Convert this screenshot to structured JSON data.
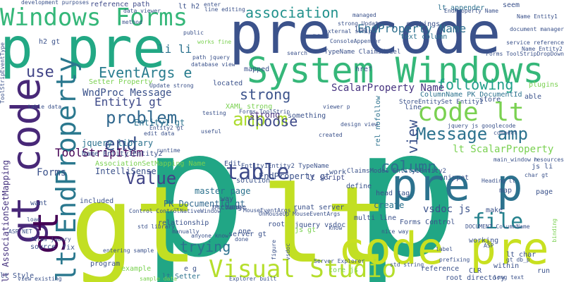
{
  "palette": {
    "background": "#ffffff",
    "colors": [
      "#440154",
      "#472d7b",
      "#3b528b",
      "#2c728e",
      "#21918c",
      "#28ae80",
      "#5ec962",
      "#addc30",
      "#d5e21a",
      "#fde725"
    ]
  },
  "words": [
    {
      "text": "p p",
      "size": 250,
      "color": "#21a685"
    },
    {
      "text": "gt lt",
      "size": 150,
      "color": "#c2df23"
    },
    {
      "text": "pre code",
      "size": 80,
      "color": "#3b528b"
    },
    {
      "text": "p pre",
      "size": 78,
      "color": "#22a884"
    },
    {
      "text": "code pre",
      "size": 62,
      "color": "#c8e020"
    },
    {
      "text": "pre p",
      "size": 62,
      "color": "#2c728e"
    },
    {
      "text": "System Windows",
      "size": 50,
      "color": "#35b779"
    },
    {
      "text": "gt code",
      "size": 56,
      "color": "#482878"
    },
    {
      "text": "lt EndProperty",
      "size": 38,
      "color": "#2a788e"
    },
    {
      "text": "Windows Forms",
      "size": 34,
      "color": "#35b779"
    },
    {
      "text": "Visual Studio",
      "size": 34,
      "color": "#b5de2b"
    },
    {
      "text": "code lt",
      "size": 36,
      "color": "#7ad151"
    },
    {
      "text": "gt",
      "size": 50,
      "color": "#440154"
    },
    {
      "text": "table",
      "size": 30,
      "color": "#3e4a89"
    },
    {
      "text": "problem",
      "size": 24,
      "color": "#31688e"
    },
    {
      "text": "amp m",
      "size": 26,
      "color": "#addc30"
    },
    {
      "text": "Message amp",
      "size": 24,
      "color": "#2c728e"
    },
    {
      "text": "file",
      "size": 30,
      "color": "#26828e"
    },
    {
      "text": "end",
      "size": 26,
      "color": "#3b528b"
    },
    {
      "text": "Value",
      "size": 24,
      "color": "#414487"
    },
    {
      "text": "column",
      "size": 22,
      "color": "#2c728e"
    },
    {
      "text": "choose",
      "size": 20,
      "color": "#3e4a89"
    },
    {
      "text": "following",
      "size": 20,
      "color": "#1f9e89"
    },
    {
      "text": "EventArgs e",
      "size": 20,
      "color": "#287c8e"
    },
    {
      "text": "association",
      "size": 20,
      "color": "#21918c"
    },
    {
      "text": "strong",
      "size": 20,
      "color": "#3b528b"
    },
    {
      "text": "trying",
      "size": 20,
      "color": "#2c728e"
    },
    {
      "text": "EndProperty Name",
      "size": 16,
      "color": "#2e6f8e"
    },
    {
      "text": "use",
      "size": 22,
      "color": "#414487"
    },
    {
      "text": "view",
      "size": 20,
      "color": "#3b528b"
    },
    {
      "text": "li li",
      "size": 16,
      "color": "#2c728e"
    },
    {
      "text": "Entity1 gt",
      "size": 16,
      "color": "#3e4a89"
    },
    {
      "text": "WndProc Message",
      "size": 14,
      "color": "#3b528b"
    },
    {
      "text": "ScalarProperty Name",
      "size": 14,
      "color": "#46337f"
    },
    {
      "text": "lt ScalarProperty",
      "size": 14,
      "color": "#7ad151"
    },
    {
      "text": "ToolStripItem",
      "size": 16,
      "color": "#440154"
    },
    {
      "text": "IntelliSense",
      "size": 12,
      "color": "#3b528b"
    },
    {
      "text": "Forms",
      "size": 14,
      "color": "#3b528b"
    },
    {
      "text": "jquery library",
      "size": 12,
      "color": "#2c728e"
    },
    {
      "text": "lt AssociationSetMapping",
      "size": 12,
      "color": "#46337f"
    },
    {
      "text": "vsdoc js",
      "size": 14,
      "color": "#3b528b"
    },
    {
      "text": "Entity1 gt",
      "size": 12,
      "color": "#2c728e"
    },
    {
      "text": "PK_DocumentId gt",
      "size": 12,
      "color": "#31688e"
    },
    {
      "text": "ColumnName PK_DocumentId",
      "size": 10,
      "color": "#2c728e"
    },
    {
      "text": "create",
      "size": 12,
      "color": "#2c728e"
    },
    {
      "text": "master page",
      "size": 12,
      "color": "#2c728e"
    },
    {
      "text": "EndProperty gt",
      "size": 12,
      "color": "#3b528b"
    },
    {
      "text": "strong",
      "size": 12,
      "color": "#472d7b"
    },
    {
      "text": "lt script",
      "size": 10,
      "color": "#3e4a89"
    },
    {
      "text": "AssociationSetMapping Name",
      "size": 10,
      "color": "#7ad151"
    },
    {
      "text": "Name Entity1Entity2",
      "size": 10,
      "color": "#3b528b"
    },
    {
      "text": "text column",
      "size": 10,
      "color": "#2c728e"
    },
    {
      "text": "settings",
      "size": 10,
      "color": "#3b528b"
    },
    {
      "text": "reference path",
      "size": 10,
      "color": "#3e4a89"
    },
    {
      "text": "lt h2",
      "size": 10,
      "color": "#3b528b"
    },
    {
      "text": "lt appender",
      "size": 10,
      "color": "#2c728e"
    },
    {
      "text": "Setter Property",
      "size": 10,
      "color": "#7ad151"
    },
    {
      "text": "mapped",
      "size": 10,
      "color": "#3b528b"
    },
    {
      "text": "located",
      "size": 10,
      "color": "#3b528b"
    },
    {
      "text": "TypeName ClaimsModel",
      "size": 9,
      "color": "#3b528b"
    },
    {
      "text": "href",
      "size": 10,
      "color": "#3b528b"
    },
    {
      "text": "rel nofollow",
      "size": 10,
      "color": "#2c728e"
    },
    {
      "text": "head tag",
      "size": 10,
      "color": "#3b528b"
    },
    {
      "text": "define",
      "size": 10,
      "color": "#3b528b"
    },
    {
      "text": "runat server",
      "size": 10,
      "color": "#3b528b"
    },
    {
      "text": "multi line",
      "size": 10,
      "color": "#3b528b"
    },
    {
      "text": "Forms Control",
      "size": 10,
      "color": "#3b528b"
    },
    {
      "text": "jquery vsdoc",
      "size": 10,
      "color": "#3b528b"
    },
    {
      "text": "server gt",
      "size": 10,
      "color": "#3b528b"
    },
    {
      "text": "root",
      "size": 10,
      "color": "#3b528b"
    },
    {
      "text": "relationship",
      "size": 10,
      "color": "#3b528b"
    },
    {
      "text": "change",
      "size": 10,
      "color": "#3b528b"
    },
    {
      "text": "js gt",
      "size": 10,
      "color": "#7ad151"
    },
    {
      "text": "one",
      "size": 10,
      "color": "#3b528b"
    },
    {
      "text": "way",
      "size": 10,
      "color": "#3b528b"
    },
    {
      "text": "example",
      "size": 10,
      "color": "#7ad151"
    },
    {
      "text": "lt Setter",
      "size": 10,
      "color": "#2c728e"
    },
    {
      "text": "e g",
      "size": 10,
      "color": "#3b528b"
    },
    {
      "text": "lt Style",
      "size": 10,
      "color": "#3b528b"
    },
    {
      "text": "included",
      "size": 10,
      "color": "#3b528b"
    },
    {
      "text": "want",
      "size": 10,
      "color": "#3b528b"
    },
    {
      "text": "core js",
      "size": 10,
      "color": "#7ad151"
    },
    {
      "text": "reference",
      "size": 10,
      "color": "#3b528b"
    },
    {
      "text": "root directory",
      "size": 10,
      "color": "#3b528b"
    },
    {
      "text": "CLR",
      "size": 10,
      "color": "#3b528b"
    },
    {
      "text": "within",
      "size": 10,
      "color": "#3b528b"
    },
    {
      "text": "lt char",
      "size": 10,
      "color": "#3b528b"
    },
    {
      "text": "run",
      "size": 10,
      "color": "#3b528b"
    },
    {
      "text": "page",
      "size": 10,
      "color": "#3b528b"
    },
    {
      "text": "map",
      "size": 10,
      "color": "#3b528b"
    },
    {
      "text": "js li",
      "size": 10,
      "color": "#3b528b"
    },
    {
      "text": "working",
      "size": 10,
      "color": "#3b528b"
    },
    {
      "text": "snippet",
      "size": 10,
      "color": "#3b528b"
    },
    {
      "text": "make",
      "size": 10,
      "color": "#3b528b"
    },
    {
      "text": "line",
      "size": 10,
      "color": "#3b528b"
    },
    {
      "text": "store",
      "size": 10,
      "color": "#3b528b"
    },
    {
      "text": "able",
      "size": 10,
      "color": "#3b528b"
    },
    {
      "text": "plugins",
      "size": 10,
      "color": "#7ad151"
    },
    {
      "text": "need",
      "size": 10,
      "color": "#3b528b"
    },
    {
      "text": "log",
      "size": 10,
      "color": "#3b528b"
    },
    {
      "text": "seem",
      "size": 10,
      "color": "#3b528b"
    },
    {
      "text": "h2 gt",
      "size": 10,
      "color": "#3b528b"
    },
    {
      "text": "source",
      "size": 10,
      "color": "#3b528b"
    },
    {
      "text": "fix",
      "size": 10,
      "color": "#3b528b"
    },
    {
      "text": "program",
      "size": 10,
      "color": "#3b528b"
    },
    {
      "text": "something",
      "size": 10,
      "color": "#3b528b"
    },
    {
      "text": "Edit",
      "size": 10,
      "color": "#3b528b"
    },
    {
      "text": "solution",
      "size": 10,
      "color": "#3b528b"
    },
    {
      "text": "work",
      "size": 10,
      "color": "#3b528b"
    },
    {
      "text": "XAML strong",
      "size": 10,
      "color": "#7ad151"
    },
    {
      "text": "Entity1Entity2 TypeName",
      "size": 9,
      "color": "#3b528b"
    },
    {
      "text": "ClaimsModel Entity1Entity2",
      "size": 9,
      "color": "#3b528b"
    },
    {
      "text": "StoreEntitySet Entity1",
      "size": 9,
      "color": "#3b528b"
    },
    {
      "text": "ToolStripEventType",
      "size": 8,
      "color": "#3b528b"
    },
    {
      "text": "development purposes",
      "size": 8,
      "color": "#3b528b"
    },
    {
      "text": "EndProperty Name",
      "size": 8,
      "color": "#3b528b"
    },
    {
      "text": "document manager",
      "size": 8,
      "color": "#3b528b"
    },
    {
      "text": "service reference",
      "size": 8,
      "color": "#3b528b"
    },
    {
      "text": "ConsoleAppender",
      "size": 8,
      "color": "#3b528b"
    },
    {
      "text": "strong Update",
      "size": 8,
      "color": "#3b528b"
    },
    {
      "text": "Update strong",
      "size": 8,
      "color": "#3b528b"
    },
    {
      "text": "database view",
      "size": 8,
      "color": "#3b528b"
    },
    {
      "text": "path jquery",
      "size": 8,
      "color": "#3b528b"
    },
    {
      "text": "Forms ToolStrip",
      "size": 8,
      "color": "#3b528b"
    },
    {
      "text": "works fine",
      "size": 8,
      "color": "#7ad151"
    },
    {
      "text": "public",
      "size": 8,
      "color": "#3b528b"
    },
    {
      "text": "runtime",
      "size": 8,
      "color": "#3b528b"
    },
    {
      "text": "useful",
      "size": 8,
      "color": "#3b528b"
    },
    {
      "text": "testing",
      "size": 8,
      "color": "#3b528b"
    },
    {
      "text": "table data",
      "size": 8,
      "color": "#3b528b"
    },
    {
      "text": "Name Entity2",
      "size": 8,
      "color": "#3b528b"
    },
    {
      "text": "Name Entity1",
      "size": 8,
      "color": "#3b528b"
    },
    {
      "text": "Forms ToolStripDropDown",
      "size": 8,
      "color": "#3b528b"
    },
    {
      "text": "main_window h",
      "size": 8,
      "color": "#3b528b"
    },
    {
      "text": "resources",
      "size": 8,
      "color": "#3b528b"
    },
    {
      "text": "char gt",
      "size": 8,
      "color": "#3b528b"
    },
    {
      "text": "Heading lt",
      "size": 8,
      "color": "#3b528b"
    },
    {
      "text": "DOCUMENT ColumnName",
      "size": 8,
      "color": "#3b528b"
    },
    {
      "text": "Control ControlNativeWindow",
      "size": 8,
      "color": "#3b528b"
    },
    {
      "text": "OnMouseUp MouseEventArgs",
      "size": 8,
      "color": "#3b528b"
    },
    {
      "text": "MouseEventArgs e",
      "size": 8,
      "color": "#3b528b"
    },
    {
      "text": "XML value",
      "size": 8,
      "color": "#3b528b"
    },
    {
      "text": "std library",
      "size": 8,
      "color": "#3b528b"
    },
    {
      "text": "anyone know",
      "size": 8,
      "color": "#3b528b"
    },
    {
      "text": "entering sample",
      "size": 8,
      "color": "#3b528b"
    },
    {
      "text": "ASP NET",
      "size": 8,
      "color": "#3b528b"
    },
    {
      "text": "files jquery",
      "size": 8,
      "color": "#3b528b"
    },
    {
      "text": "Explorer built",
      "size": 8,
      "color": "#3b528b"
    },
    {
      "text": "Server Explorer",
      "size": 8,
      "color": "#3b528b"
    },
    {
      "text": "std string",
      "size": 8,
      "color": "#3b528b"
    },
    {
      "text": "nice way",
      "size": 8,
      "color": "#3b528b"
    },
    {
      "text": "view existing",
      "size": 8,
      "color": "#3b528b"
    },
    {
      "text": "sample data",
      "size": 8,
      "color": "#7ad151"
    },
    {
      "text": "jquery js googlecode",
      "size": 8,
      "color": "#3b528b"
    },
    {
      "text": "viewer p",
      "size": 8,
      "color": "#3b528b"
    },
    {
      "text": "edit data",
      "size": 8,
      "color": "#3b528b"
    },
    {
      "text": "Entity2 gt",
      "size": 8,
      "color": "#3b528b"
    },
    {
      "text": "line editing",
      "size": 8,
      "color": "#3b528b"
    },
    {
      "text": "enter",
      "size": 8,
      "color": "#3b528b"
    },
    {
      "text": "method",
      "size": 8,
      "color": "#3b528b"
    },
    {
      "text": "managed",
      "size": 8,
      "color": "#3b528b"
    },
    {
      "text": "search",
      "size": 8,
      "color": "#3b528b"
    },
    {
      "text": "connect",
      "size": 8,
      "color": "#3b528b"
    },
    {
      "text": "design view",
      "size": 8,
      "color": "#3b528b"
    },
    {
      "text": "label",
      "size": 8,
      "color": "#3b528b"
    },
    {
      "text": "prefixing",
      "size": 8,
      "color": "#3b528b"
    },
    {
      "text": "long text",
      "size": 8,
      "color": "#3b528b"
    },
    {
      "text": "gt db_p",
      "size": 8,
      "color": "#3b528b"
    },
    {
      "text": "ASP",
      "size": 8,
      "color": "#3b528b"
    },
    {
      "text": "know",
      "size": 8,
      "color": "#3b528b"
    },
    {
      "text": "done",
      "size": 8,
      "color": "#3b528b"
    },
    {
      "text": "figure",
      "size": 8,
      "color": "#3b528b"
    },
    {
      "text": "vsdoc",
      "size": 8,
      "color": "#3b528b"
    },
    {
      "text": "manually",
      "size": 8,
      "color": "#3b528b"
    },
    {
      "text": "load",
      "size": 8,
      "color": "#3b528b"
    },
    {
      "text": "binding",
      "size": 8,
      "color": "#7ad151"
    },
    {
      "text": "external script",
      "size": 8,
      "color": "#3b528b"
    },
    {
      "text": "data viewer",
      "size": 8,
      "color": "#3b528b"
    },
    {
      "text": "created",
      "size": 8,
      "color": "#3b528b"
    }
  ]
}
